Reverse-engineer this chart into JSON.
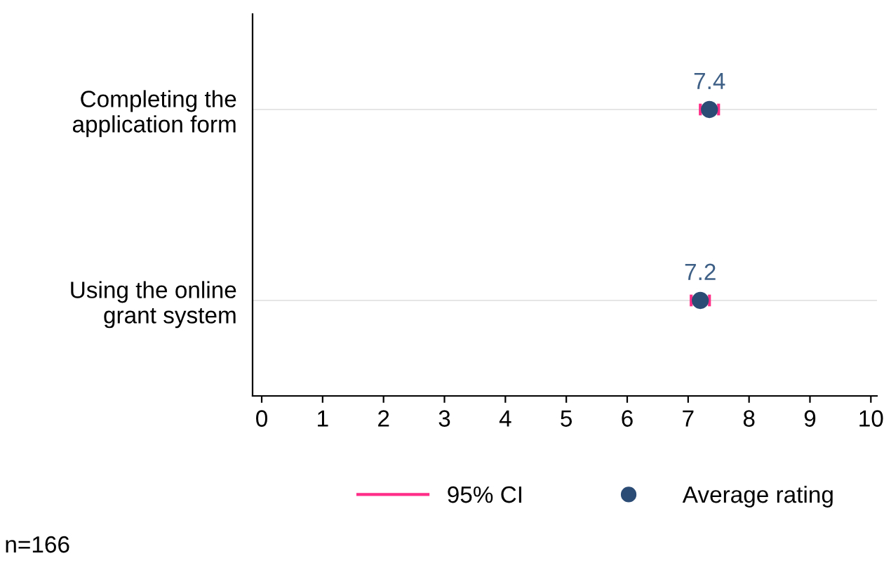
{
  "chart_data": {
    "type": "scatter",
    "orientation": "horizontal",
    "categories": [
      "Completing the\napplication form",
      "Using the online\ngrant system"
    ],
    "series": [
      {
        "name": "Average rating",
        "color": "#2b4c75",
        "values": [
          7.35,
          7.2
        ],
        "value_labels": [
          "7.4",
          "7.2"
        ],
        "errors": [
          [
            7.2,
            7.5
          ],
          [
            7.05,
            7.35
          ]
        ]
      }
    ],
    "xlim": [
      -0.15,
      10.1
    ],
    "xticks": [
      0,
      1,
      2,
      3,
      4,
      5,
      6,
      7,
      8,
      9,
      10
    ],
    "grid": "y",
    "legend": "bottom",
    "marker": "circle",
    "annotations": [
      "95% CI",
      "n=166"
    ]
  }
}
